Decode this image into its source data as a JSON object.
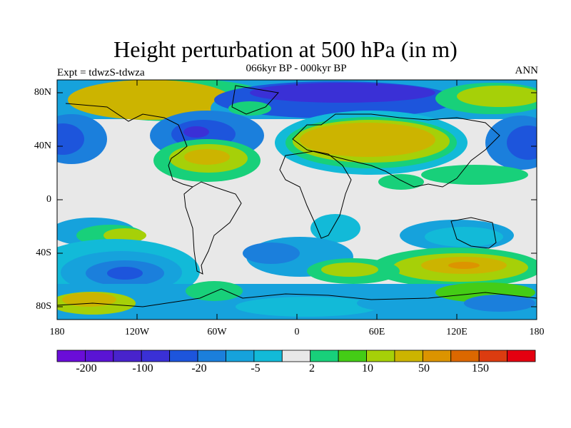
{
  "title": "Height perturbation at 500 hPa (in m)",
  "subtitle": "066kyr BP - 000kyr BP",
  "left_string": "Expt = tdwzS-tdwza",
  "right_string": "ANN",
  "lat_labels": [
    "80N",
    "40N",
    "0",
    "40S",
    "80S"
  ],
  "lon_labels": [
    "180",
    "120W",
    "60W",
    "0",
    "60E",
    "120E",
    "180"
  ],
  "colorbar": {
    "labels": [
      "-200",
      "-100",
      "-20",
      "-5",
      "2",
      "10",
      "50",
      "150"
    ],
    "colors": [
      "#6a0dd8",
      "#5a14d4",
      "#4823cc",
      "#3a30d6",
      "#1d55dc",
      "#1b7fdc",
      "#16a2dc",
      "#12bad8",
      "#e8e8e8",
      "#18d07a",
      "#44cc16",
      "#a6d008",
      "#ccb400",
      "#dc9400",
      "#dc6800",
      "#dc3c10",
      "#e40010"
    ]
  },
  "palette": {
    "neutral": "#e8e8e8",
    "green_light": "#18d07a",
    "green": "#44cc16",
    "yellow_green": "#a6d008",
    "olive": "#ccb400",
    "orange": "#dc9400",
    "cyan": "#12bad8",
    "blue_light": "#16a2dc",
    "blue": "#1b7fdc",
    "blue_dark": "#1d55dc",
    "indigo": "#3a30d6"
  }
}
